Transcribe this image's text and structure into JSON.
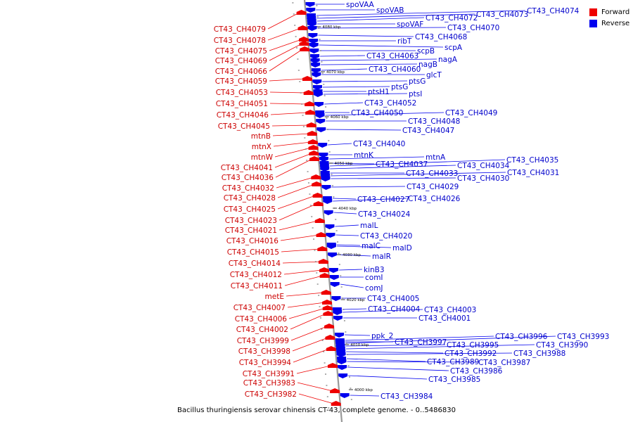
{
  "caption": "Bacillus thuringiensis serovar chinensis CT-43, complete genome. - 0..5486830",
  "legend": [
    {
      "label": "Forward",
      "color": "#ee0000"
    },
    {
      "label": "Reverse",
      "color": "#0000ee"
    }
  ],
  "colors": {
    "forward_gene": "#ee0000",
    "reverse_gene": "#0000ee",
    "forward_label": "#cc0000",
    "reverse_label": "#0000cc",
    "backbone": "#999999"
  },
  "ticks": [
    "4080 kbp",
    "4070 kbp",
    "4060 kbp",
    "4050 kbp",
    "4040 kbp",
    "4030 kbp",
    "4020 kbp",
    "4010 kbp",
    "4000 kbp"
  ],
  "forward_genes": [
    "CT43_CH4079",
    "CT43_CH4078",
    "CT43_CH4075",
    "CT43_CH4069",
    "CT43_CH4066",
    "CT43_CH4059",
    "CT43_CH4053",
    "CT43_CH4051",
    "CT43_CH4046",
    "CT43_CH4045",
    "mtnB",
    "mtnX",
    "mtnW",
    "CT43_CH4041",
    "CT43_CH4036",
    "CT43_CH4032",
    "CT43_CH4028",
    "CT43_CH4025",
    "CT43_CH4023",
    "CT43_CH4021",
    "CT43_CH4016",
    "CT43_CH4015",
    "CT43_CH4014",
    "CT43_CH4012",
    "CT43_CH4011",
    "metE",
    "CT43_CH4007",
    "CT43_CH4006",
    "CT43_CH4002",
    "CT43_CH3999",
    "CT43_CH3998",
    "CT43_CH3994",
    "CT43_CH3991",
    "CT43_CH3983",
    "CT43_CH3982"
  ],
  "reverse_genes": [
    "spoVAA",
    "spoVAB",
    "CT43_CH4074",
    "CT43_CH4073",
    "CT43_CH4072",
    "spoVAF",
    "CT43_CH4070",
    "CT43_CH4068",
    "ribT",
    "scpA",
    "scpB",
    "CT43_CH4063",
    "nagA",
    "nagB",
    "CT43_CH4060",
    "glcT",
    "ptsG",
    "ptsG",
    "ptsH1",
    "ptsI",
    "CT43_CH4052",
    "CT43_CH4050",
    "CT43_CH4049",
    "CT43_CH4048",
    "CT43_CH4047",
    "CT43_CH4040",
    "mtnK",
    "mtnA",
    "CT43_CH4037",
    "CT43_CH4035",
    "CT43_CH4034",
    "CT43_CH4033",
    "CT43_CH4031",
    "CT43_CH4030",
    "CT43_CH4029",
    "CT43_CH4027",
    "CT43_CH4026",
    "CT43_CH4024",
    "malL",
    "CT43_CH4020",
    "malC",
    "malD",
    "malR",
    "kinB3",
    "comI",
    "comJ",
    "CT43_CH4005",
    "CT43_CH4004",
    "CT43_CH4003",
    "CT43_CH4001",
    "ppk_2",
    "CT43_CH3997",
    "CT43_CH3996",
    "CT43_CH3993",
    "CT43_CH3995",
    "CT43_CH3990",
    "CT43_CH3992",
    "CT43_CH3988",
    "CT43_CH3989",
    "CT43_CH3987",
    "CT43_CH3986",
    "CT43_CH3985",
    "CT43_CH3984"
  ]
}
